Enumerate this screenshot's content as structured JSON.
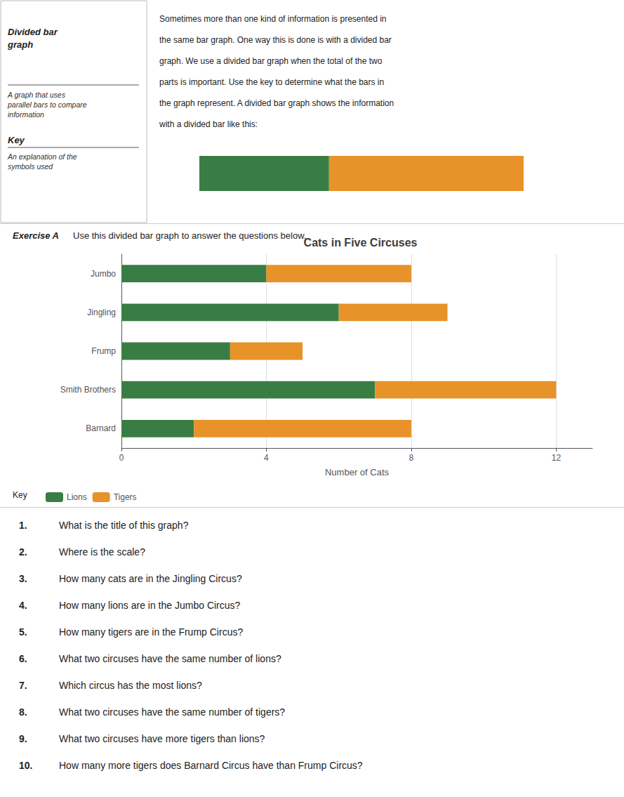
{
  "chart_data": {
    "type": "bar",
    "title": "Cats in Five Circuses",
    "xlabel": "Number of Cats",
    "categories": [
      "Jumbo",
      "Jingling",
      "Frump",
      "Smith Brothers",
      "Barnard"
    ],
    "series": [
      {
        "name": "Lions",
        "color": "#3a7d44",
        "values": [
          4,
          6,
          3,
          7,
          2
        ]
      },
      {
        "name": "Tigers",
        "color": "#e8922a",
        "values": [
          4,
          3,
          2,
          5,
          6
        ]
      }
    ],
    "orientation": "horizontal",
    "stacked": true,
    "xlim": [
      0,
      13
    ],
    "xticks": [
      0,
      4,
      8,
      12
    ],
    "grid": true,
    "legend": "bottom",
    "annotations": [
      "Divided bar\ngraph",
      "A graph that uses\nparallel bars to compare\ninformation",
      "Key",
      "An explanation of the\nsymbols used",
      "Sometimes more than one kind of information is presented in\nthe same bar graph. One way this is done is with a divided bar\ngraph. We use a divided bar graph when the total of the two\nparts is important. Use the key to determine what the bars in\nthe graph represent. A divided bar graph shows the information\nwith a divided bar like this:",
      "Exercise A",
      "Use this divided bar graph to answer the questions below.",
      "Key",
      "1.",
      "What is the title of this graph?",
      "2.",
      "Where is the scale?",
      "3.",
      "How many cats are in the Jingling Circus?",
      "4.",
      "How many lions are in the Jumbo Circus?",
      "5.",
      "How many tigers are in the Frump Circus?",
      "6.",
      "What two circuses have the same number of lions?",
      "7.",
      "Which circus has the most lions?",
      "8.",
      "What two circuses have the same number of tigers?",
      "9.",
      "What two circuses have more tigers than lions?",
      "10.",
      "How many more tigers does Barnard Circus have than Frump Circus?"
    ]
  }
}
